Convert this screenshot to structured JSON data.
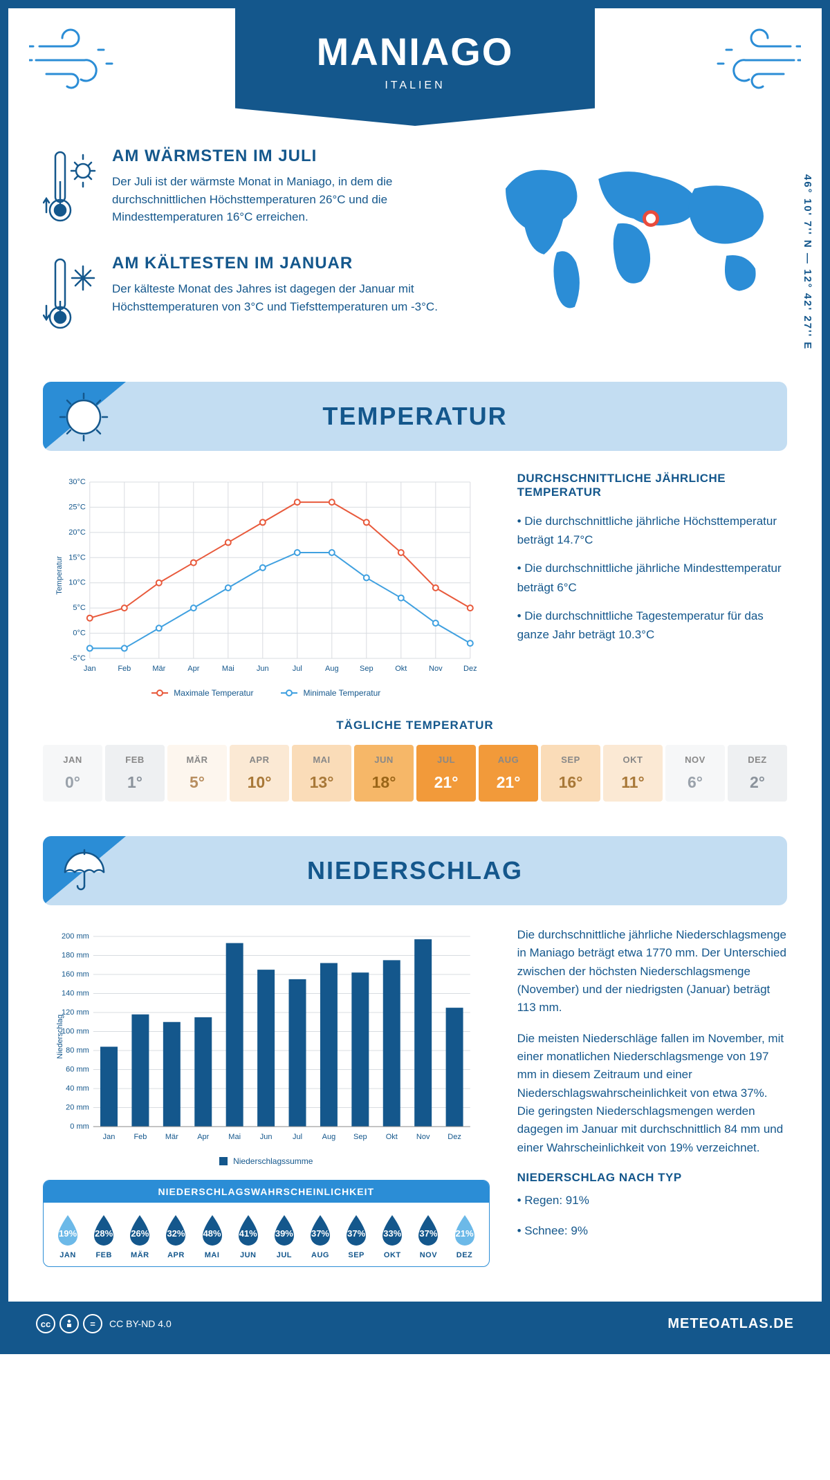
{
  "header": {
    "title": "MANIAGO",
    "country": "ITALIEN",
    "coords": "46° 10' 7'' N — 12° 42' 27'' E"
  },
  "colors": {
    "primary": "#14578c",
    "header_blue": "#2b8dd6",
    "light_blue": "#c3ddf2",
    "max_temp_line": "#e8593b",
    "min_temp_line": "#3fa0e0",
    "bar_color": "#14578c",
    "grid": "#d0d5da"
  },
  "warmest": {
    "title": "AM WÄRMSTEN IM JULI",
    "text": "Der Juli ist der wärmste Monat in Maniago, in dem die durchschnittlichen Höchsttemperaturen 26°C und die Mindesttemperaturen 16°C erreichen."
  },
  "coldest": {
    "title": "AM KÄLTESTEN IM JANUAR",
    "text": "Der kälteste Monat des Jahres ist dagegen der Januar mit Höchsttemperaturen von 3°C und Tiefsttemperaturen um -3°C."
  },
  "temp_section": {
    "title": "TEMPERATUR"
  },
  "temp_chart": {
    "type": "line",
    "months": [
      "Jan",
      "Feb",
      "Mär",
      "Apr",
      "Mai",
      "Jun",
      "Jul",
      "Aug",
      "Sep",
      "Okt",
      "Nov",
      "Dez"
    ],
    "max_temp": [
      3,
      5,
      10,
      14,
      18,
      22,
      26,
      26,
      22,
      16,
      9,
      5
    ],
    "min_temp": [
      -3,
      -3,
      1,
      5,
      9,
      13,
      16,
      16,
      11,
      7,
      2,
      -2
    ],
    "y_axis_label": "Temperatur",
    "ylim": [
      -5,
      30
    ],
    "ytick_step": 5,
    "y_suffix": "°C",
    "legend_max": "Maximale Temperatur",
    "legend_min": "Minimale Temperatur",
    "marker_style": "circle",
    "line_width": 2,
    "grid_color": "#d8dce0"
  },
  "temp_info": {
    "title": "DURCHSCHNITTLICHE JÄHRLICHE TEMPERATUR",
    "bullets": [
      "• Die durchschnittliche jährliche Höchsttemperatur beträgt 14.7°C",
      "• Die durchschnittliche jährliche Mindesttemperatur beträgt 6°C",
      "• Die durchschnittliche Tagestemperatur für das ganze Jahr beträgt 10.3°C"
    ]
  },
  "daily_temp": {
    "title": "TÄGLICHE TEMPERATUR",
    "months": [
      "JAN",
      "FEB",
      "MÄR",
      "APR",
      "MAI",
      "JUN",
      "JUL",
      "AUG",
      "SEP",
      "OKT",
      "NOV",
      "DEZ"
    ],
    "values": [
      "0°",
      "1°",
      "5°",
      "10°",
      "13°",
      "18°",
      "21°",
      "21°",
      "16°",
      "11°",
      "6°",
      "2°"
    ],
    "bg_colors": [
      "#f6f7f8",
      "#eef0f2",
      "#fdf6ee",
      "#fbe9d4",
      "#fadcb8",
      "#f6b768",
      "#f29a3a",
      "#f29a3a",
      "#fadcb8",
      "#fbe9d4",
      "#f6f7f8",
      "#eef0f2"
    ],
    "text_colors": [
      "#9aa2ab",
      "#8a929b",
      "#b88e60",
      "#a87838",
      "#a87838",
      "#9a6518",
      "#ffffff",
      "#ffffff",
      "#a87838",
      "#a87838",
      "#9aa2ab",
      "#8a929b"
    ]
  },
  "precip_section": {
    "title": "NIEDERSCHLAG"
  },
  "precip_chart": {
    "type": "bar",
    "months": [
      "Jan",
      "Feb",
      "Mär",
      "Apr",
      "Mai",
      "Jun",
      "Jul",
      "Aug",
      "Sep",
      "Okt",
      "Nov",
      "Dez"
    ],
    "values": [
      84,
      118,
      110,
      115,
      193,
      165,
      155,
      172,
      162,
      175,
      197,
      125
    ],
    "y_axis_label": "Niederschlag",
    "ylim": [
      0,
      200
    ],
    "ytick_step": 20,
    "y_suffix": " mm",
    "legend": "Niederschlagssumme",
    "bar_color": "#14578c",
    "grid_color": "#d8dce0",
    "bar_width_ratio": 0.55
  },
  "precip_text": {
    "p1": "Die durchschnittliche jährliche Niederschlagsmenge in Maniago beträgt etwa 1770 mm. Der Unterschied zwischen der höchsten Niederschlagsmenge (November) und der niedrigsten (Januar) beträgt 113 mm.",
    "p2": "Die meisten Niederschläge fallen im November, mit einer monatlichen Niederschlagsmenge von 197 mm in diesem Zeitraum und einer Niederschlagswahrscheinlichkeit von etwa 37%. Die geringsten Niederschlagsmengen werden dagegen im Januar mit durchschnittlich 84 mm und einer Wahrscheinlichkeit von 19% verzeichnet.",
    "type_title": "NIEDERSCHLAG NACH TYP",
    "type_bullets": [
      "• Regen: 91%",
      "• Schnee: 9%"
    ]
  },
  "prob": {
    "title": "NIEDERSCHLAGSWAHRSCHEINLICHKEIT",
    "months": [
      "JAN",
      "FEB",
      "MÄR",
      "APR",
      "MAI",
      "JUN",
      "JUL",
      "AUG",
      "SEP",
      "OKT",
      "NOV",
      "DEZ"
    ],
    "values": [
      "19%",
      "28%",
      "26%",
      "32%",
      "48%",
      "41%",
      "39%",
      "37%",
      "37%",
      "33%",
      "37%",
      "21%"
    ],
    "drop_colors": [
      "#6cb9e8",
      "#14578c",
      "#14578c",
      "#14578c",
      "#14578c",
      "#14578c",
      "#14578c",
      "#14578c",
      "#14578c",
      "#14578c",
      "#14578c",
      "#6cb9e8"
    ]
  },
  "footer": {
    "license": "CC BY-ND 4.0",
    "brand": "METEOATLAS.DE"
  }
}
